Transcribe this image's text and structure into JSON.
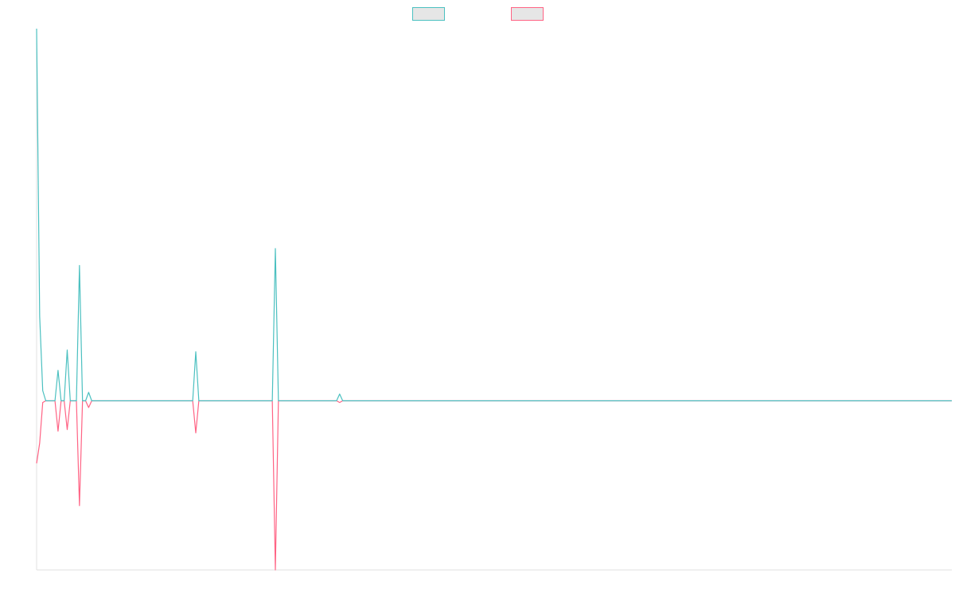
{
  "chart_data": {
    "type": "line",
    "title": "",
    "xlabel": "",
    "ylabel": "",
    "grid": false,
    "legend_position": "top-center",
    "ylim": [
      -1.0,
      2.2
    ],
    "x_count": 300,
    "series": [
      {
        "name": "",
        "color": "#4bc0c0",
        "fill": "#e6e6e6",
        "points": [
          [
            0,
            2.2
          ],
          [
            1,
            0.5
          ],
          [
            2,
            0.06
          ],
          [
            3,
            0.0
          ],
          [
            4,
            0.0
          ],
          [
            5,
            0.0
          ],
          [
            6,
            0.0
          ],
          [
            7,
            0.18
          ],
          [
            8,
            0.0
          ],
          [
            9,
            0.0
          ],
          [
            10,
            0.3
          ],
          [
            11,
            0.0
          ],
          [
            12,
            0.0
          ],
          [
            13,
            0.0
          ],
          [
            14,
            0.8
          ],
          [
            15,
            0.0
          ],
          [
            16,
            0.0
          ],
          [
            17,
            0.05
          ],
          [
            18,
            0.0
          ],
          [
            51,
            0.0
          ],
          [
            52,
            0.29
          ],
          [
            53,
            0.0
          ],
          [
            77,
            0.0
          ],
          [
            78,
            0.9
          ],
          [
            79,
            0.0
          ],
          [
            98,
            0.0
          ],
          [
            99,
            0.04
          ],
          [
            100,
            0.0
          ],
          [
            299,
            0.0
          ]
        ]
      },
      {
        "name": "",
        "color": "#ff6384",
        "fill": "#e6e6e6",
        "points": [
          [
            0,
            -0.37
          ],
          [
            1,
            -0.25
          ],
          [
            2,
            -0.01
          ],
          [
            3,
            0.0
          ],
          [
            4,
            0.0
          ],
          [
            5,
            0.0
          ],
          [
            6,
            0.0
          ],
          [
            7,
            -0.18
          ],
          [
            8,
            0.0
          ],
          [
            9,
            0.0
          ],
          [
            10,
            -0.17
          ],
          [
            11,
            0.0
          ],
          [
            12,
            0.0
          ],
          [
            13,
            0.0
          ],
          [
            14,
            -0.62
          ],
          [
            15,
            0.0
          ],
          [
            16,
            0.0
          ],
          [
            17,
            -0.04
          ],
          [
            18,
            0.0
          ],
          [
            51,
            0.0
          ],
          [
            52,
            -0.19
          ],
          [
            53,
            0.0
          ],
          [
            77,
            0.0
          ],
          [
            78,
            -1.0
          ],
          [
            79,
            0.0
          ],
          [
            98,
            0.0
          ],
          [
            99,
            -0.01
          ],
          [
            100,
            0.0
          ],
          [
            299,
            0.0
          ]
        ]
      }
    ]
  }
}
